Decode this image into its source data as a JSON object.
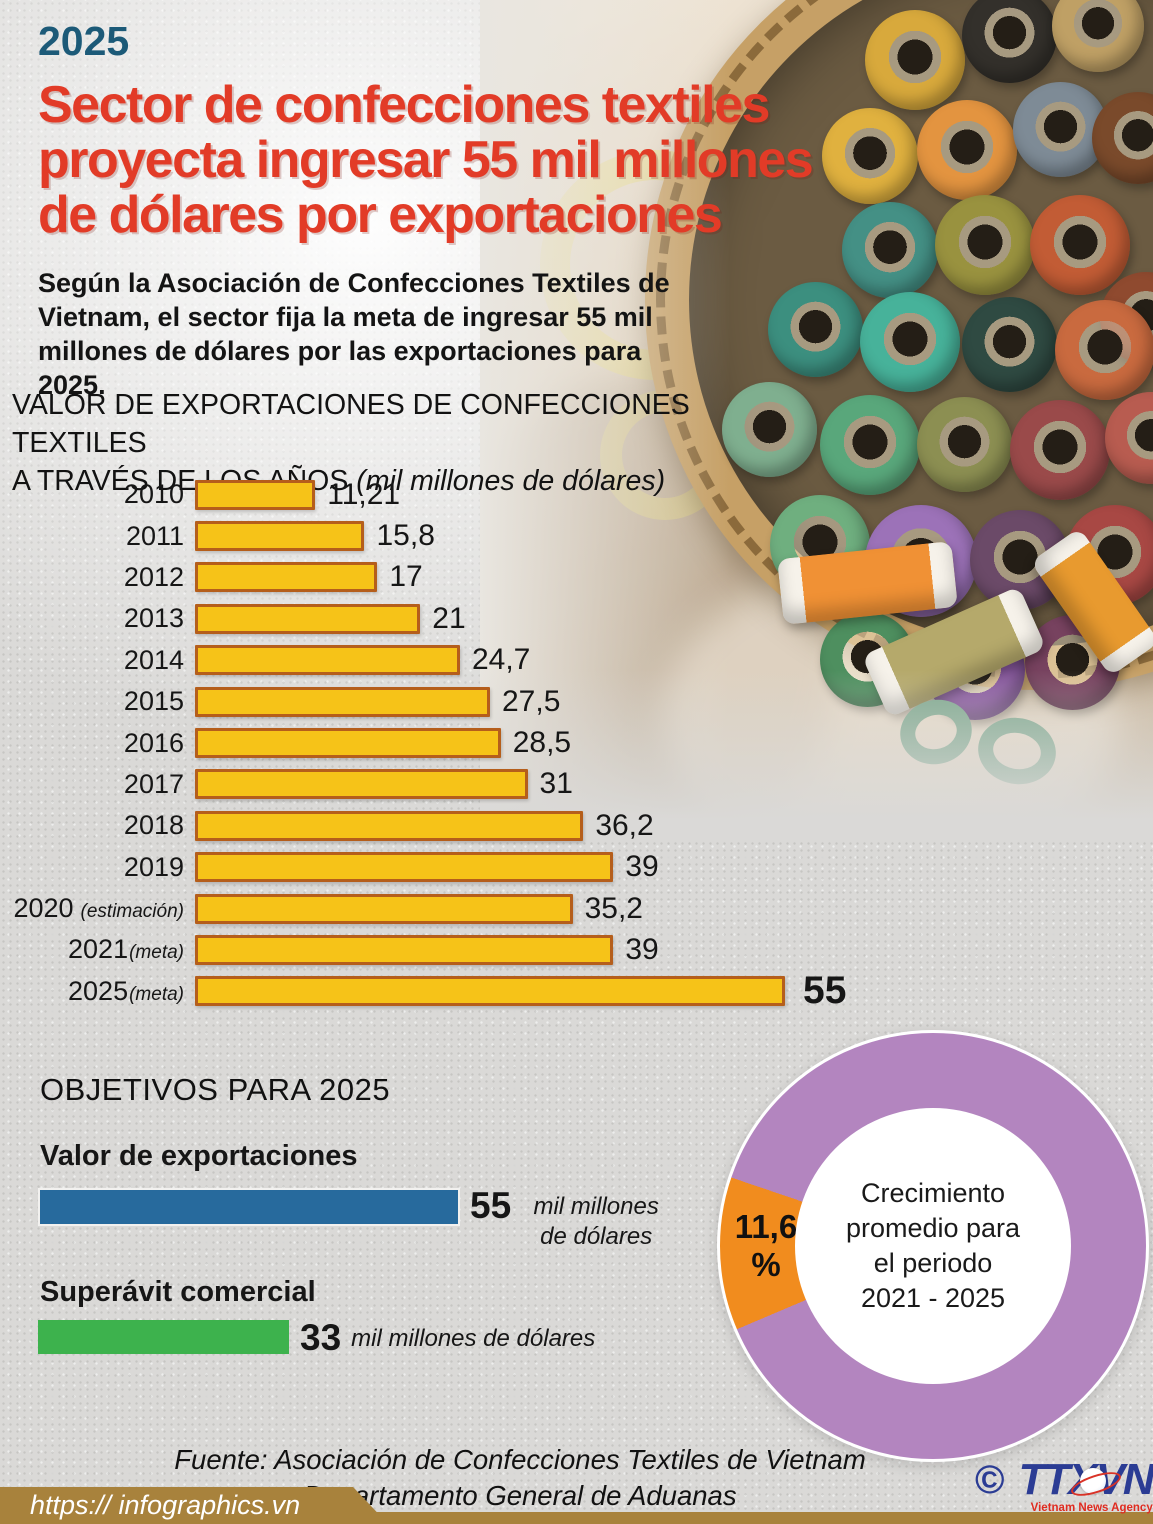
{
  "header": {
    "year_tag": "2025",
    "title_lines": [
      "Sector de confecciones textiles",
      "proyecta ingresar 55 mil millones",
      "de dólares por exportaciones"
    ],
    "intro": "Según la Asociación de Confecciones Textiles de Vietnam, el sector fija la meta de ingresar 55 mil millones de dólares por las exportaciones para 2025."
  },
  "chart_data": [
    {
      "id": "exports-by-year",
      "type": "bar",
      "orientation": "horizontal",
      "title": "VALOR DE EXPORTACIONES DE CONFECCIONES TEXTILES A TRAVÉS DE LOS AÑOS",
      "title_lines": [
        "VALOR DE EXPORTACIONES DE CONFECCIONES TEXTILES",
        "A TRAVÉS DE LOS AÑOS"
      ],
      "unit_note": "(mil millones de dólares)",
      "xlim": [
        0,
        55
      ],
      "grid": false,
      "legend": "none",
      "bar_color": "#F6C318",
      "bar_border_color": "#B55E1B",
      "categories": [
        "2010",
        "2011",
        "2012",
        "2013",
        "2014",
        "2015",
        "2016",
        "2017",
        "2018",
        "2019",
        "2020",
        "2021",
        "2025"
      ],
      "category_notes": {
        "2020": "(estimación)",
        "2021": "(meta)",
        "2025": "(meta)"
      },
      "values": [
        11.21,
        15.8,
        17,
        21,
        24.7,
        27.5,
        28.5,
        31,
        36.2,
        39,
        35.2,
        39,
        55
      ],
      "value_labels": [
        "11,21",
        "15,8",
        "17",
        "21",
        "24,7",
        "27,5",
        "28,5",
        "31",
        "36,2",
        "39",
        "35,2",
        "39",
        "55"
      ]
    },
    {
      "id": "objectives-2025",
      "type": "bar",
      "orientation": "horizontal",
      "heading": "OBJETIVOS PARA 2025",
      "xlim": [
        0,
        55
      ],
      "items": [
        {
          "label": "Valor de exportaciones",
          "numeric": 55,
          "value": "55",
          "unit": "mil millones de dólares",
          "color": "#276A9D"
        },
        {
          "label": "Superávit comercial",
          "numeric": 33,
          "value": "33",
          "unit": "mil millones de dólares",
          "color": "#3DB24D"
        }
      ]
    },
    {
      "id": "average-growth-donut",
      "type": "pie",
      "donut": true,
      "slices": [
        {
          "label": "11,6 %",
          "label_lines": [
            "11,6",
            "%"
          ],
          "value": 11.6,
          "color": "#F18C1E"
        },
        {
          "label": "",
          "value": 88.4,
          "color": "#B385BF"
        }
      ],
      "center_lines": [
        "Crecimiento",
        "promedio para",
        "el periodo",
        "2021 - 2025"
      ]
    }
  ],
  "footer": {
    "source_lines": [
      "Fuente: Asociación de Confecciones Textiles de Vietnam",
      "Departamento General de Aduanas"
    ],
    "url": "https:// infographics.vn",
    "copyright_symbol": "©",
    "agency_abbr": "TTXVN",
    "agency_name": "Vietnam News Agency"
  },
  "colors": {
    "accent_red": "#E23B27",
    "accent_teal": "#1C5A78",
    "bar_yellow": "#F6C318",
    "bar_border": "#B55E1B",
    "export_blue": "#276A9D",
    "surplus_green": "#3DB24D",
    "donut_purple": "#B385BF",
    "donut_orange": "#F18C1E",
    "banner_gold": "#A8823C"
  }
}
